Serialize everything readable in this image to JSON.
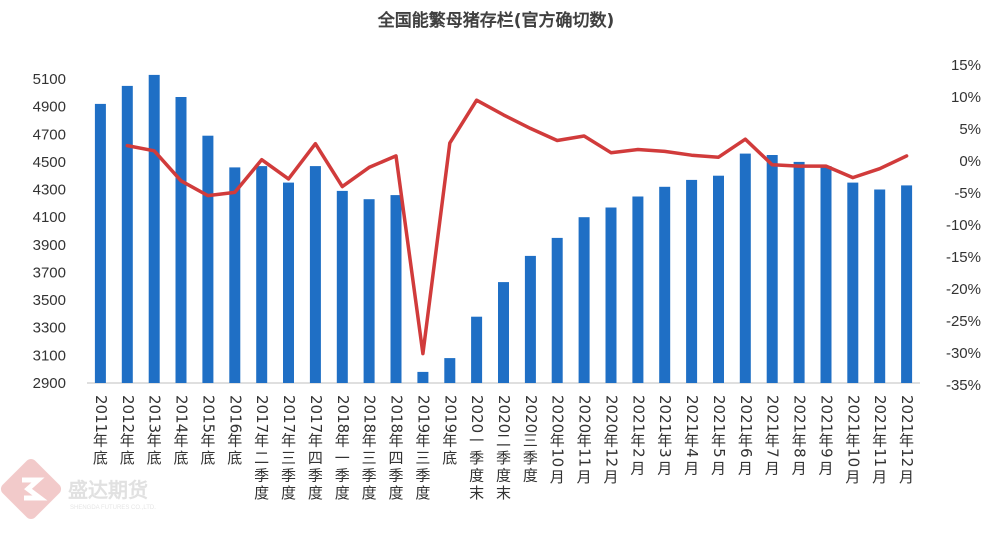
{
  "chart_data": {
    "type": "bar",
    "title": "全国能繁母猪存栏(官方确切数)",
    "categories": [
      "2011年底",
      "2012年底",
      "2013年底",
      "2014年底",
      "2015年底",
      "2016年底",
      "2017年二季度",
      "2017年三季度",
      "2017年四季度",
      "2018年一季度",
      "2018年三季度",
      "2018年四季度",
      "2019年三季度",
      "2019年底",
      "2020一季度末",
      "2020二季度末",
      "2020三季度",
      "2020年10月",
      "2020年11月",
      "2020年12月",
      "2021年2月",
      "2021年3月",
      "2021年4月",
      "2021年5月",
      "2021年6月",
      "2021年7月",
      "2021年8月",
      "2021年9月",
      "2021年10月",
      "2021年11月",
      "2021年12月"
    ],
    "bar_series": {
      "axis": "left",
      "color": "#1f6fc5",
      "values": [
        4920,
        5050,
        5130,
        4970,
        4690,
        4460,
        4470,
        4350,
        4470,
        4290,
        4230,
        4260,
        2980,
        3080,
        3380,
        3630,
        3820,
        3950,
        4100,
        4170,
        4250,
        4320,
        4370,
        4400,
        4560,
        4550,
        4500,
        4470,
        4350,
        4300,
        4330
      ]
    },
    "line_series": {
      "axis": "right",
      "color": "#d13b3b",
      "start_index": 1,
      "values": [
        2.4,
        1.6,
        -3.1,
        -5.4,
        -4.9,
        0.2,
        -2.8,
        2.7,
        -4.0,
        -1.0,
        0.8,
        -30.1,
        2.8,
        9.5,
        7.2,
        5.1,
        3.2,
        3.9,
        1.3,
        1.8,
        1.5,
        0.9,
        0.6,
        3.4,
        -0.6,
        -0.8,
        -0.8,
        -2.6,
        -1.2,
        0.8
      ]
    },
    "y_left": {
      "min": 2900,
      "max": 5100,
      "ticks": [
        "2900",
        "3100",
        "3300",
        "3500",
        "3700",
        "3900",
        "4100",
        "4300",
        "4500",
        "4700",
        "4900",
        "5100"
      ]
    },
    "y_right": {
      "min": -35,
      "max": 15,
      "ticks": [
        "-35%",
        "-30%",
        "-25%",
        "-20%",
        "-15%",
        "-10%",
        "-5%",
        "0%",
        "5%",
        "10%",
        "15%"
      ]
    },
    "grid": false,
    "legend": "none"
  },
  "watermark": {
    "text": "盛达期货",
    "subtext": "SHENGDA FUTURES CO.,LTD."
  }
}
